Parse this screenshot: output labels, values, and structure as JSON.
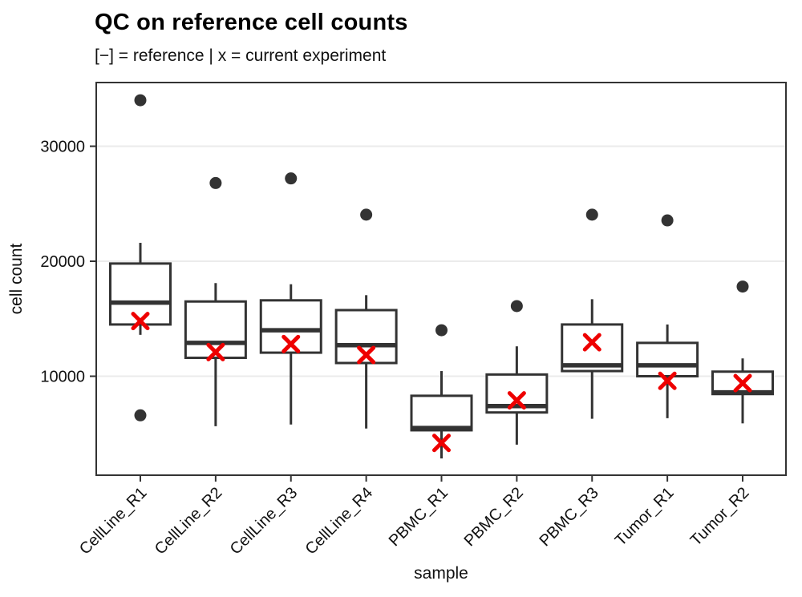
{
  "chart": {
    "title": "QC on reference cell counts",
    "subtitle": "[−] = reference | x = current experiment"
  },
  "chart_data": {
    "type": "boxplot",
    "title": "QC on reference cell counts",
    "subtitle": "[−] = reference | x = current experiment",
    "xlabel": "sample",
    "ylabel": "cell count",
    "yticks": [
      10000,
      20000,
      30000
    ],
    "ytick_labels": [
      "10000",
      "20000",
      "30000"
    ],
    "ylim": [
      1400,
      35600
    ],
    "grid": "horizontal-major-only",
    "legend": "none",
    "marker_meaning": {
      "box": "reference distribution",
      "red_x": "current experiment"
    },
    "categories": [
      "CellLine_R1",
      "CellLine_R2",
      "CellLine_R3",
      "CellLine_R4",
      "PBMC_R1",
      "PBMC_R2",
      "PBMC_R3",
      "Tumor_R1",
      "Tumor_R2"
    ],
    "boxes": [
      {
        "sample": "CellLine_R1",
        "whisker_low": 13600,
        "q1": 14500,
        "median": 16400,
        "q3": 19800,
        "whisker_high": 21600,
        "outliers": [
          34000,
          6600
        ],
        "current": 14800
      },
      {
        "sample": "CellLine_R2",
        "whisker_low": 5650,
        "q1": 11600,
        "median": 12900,
        "q3": 16500,
        "whisker_high": 18100,
        "outliers": [
          26800
        ],
        "current": 12100
      },
      {
        "sample": "CellLine_R3",
        "whisker_low": 5800,
        "q1": 12050,
        "median": 14000,
        "q3": 16600,
        "whisker_high": 18000,
        "outliers": [
          27200
        ],
        "current": 12800
      },
      {
        "sample": "CellLine_R4",
        "whisker_low": 5450,
        "q1": 11150,
        "median": 12700,
        "q3": 15750,
        "whisker_high": 17050,
        "outliers": [
          24050
        ],
        "current": 11850
      },
      {
        "sample": "PBMC_R1",
        "whisker_low": 2850,
        "q1": 5300,
        "median": 5500,
        "q3": 8300,
        "whisker_high": 10450,
        "outliers": [
          14000
        ],
        "current": 4200
      },
      {
        "sample": "PBMC_R2",
        "whisker_low": 4050,
        "q1": 6850,
        "median": 7400,
        "q3": 10150,
        "whisker_high": 12600,
        "outliers": [
          16100
        ],
        "current": 7900
      },
      {
        "sample": "PBMC_R3",
        "whisker_low": 6300,
        "q1": 10450,
        "median": 10950,
        "q3": 14500,
        "whisker_high": 16700,
        "outliers": [
          24050
        ],
        "current": 12950
      },
      {
        "sample": "Tumor_R1",
        "whisker_low": 6350,
        "q1": 10000,
        "median": 10950,
        "q3": 12900,
        "whisker_high": 14500,
        "outliers": [
          23550
        ],
        "current": 9600
      },
      {
        "sample": "Tumor_R2",
        "whisker_low": 5900,
        "q1": 8450,
        "median": 8600,
        "q3": 10400,
        "whisker_high": 11550,
        "outliers": [
          17800
        ],
        "current": 9400
      }
    ],
    "colors": {
      "box_stroke": "#333333",
      "box_fill": "#ffffff",
      "outlier": "#333333",
      "current_marker": "#ee0000",
      "gridline": "#ebebeb",
      "panel_border": "#333333",
      "axis_text": "#111111"
    }
  }
}
